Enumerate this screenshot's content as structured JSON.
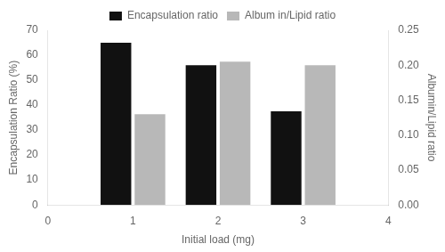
{
  "chart_data": {
    "type": "bar",
    "x": [
      1,
      2,
      3
    ],
    "series": [
      {
        "name": "Encapsulation ratio",
        "color": "#111111",
        "values": [
          65.0,
          56.0,
          37.5
        ]
      },
      {
        "name": "Album in/Lipid ratio",
        "color": "#b8b8b8",
        "values": [
          0.13,
          0.205,
          0.2
        ],
        "axis": "y2"
      }
    ],
    "xlabel": "Initial load (mg)",
    "ylabel": "Encapsulation Ratio (%)",
    "y2label": "Albumin/Lipid ratio",
    "xlim": [
      0,
      4
    ],
    "xticks": [
      0,
      1,
      2,
      3,
      4
    ],
    "ylim": [
      0,
      70
    ],
    "yticks": [
      0,
      10,
      20,
      30,
      40,
      50,
      60,
      70
    ],
    "y2lim": [
      0.0,
      0.25
    ],
    "y2ticks": [
      {
        "value": 0.0,
        "label": "0.00"
      },
      0.05,
      {
        "value": 0.1,
        "label": "0.10"
      },
      0.15,
      {
        "value": 0.2,
        "label": "0.20"
      },
      0.25
    ],
    "grid": false,
    "legend": "top"
  }
}
